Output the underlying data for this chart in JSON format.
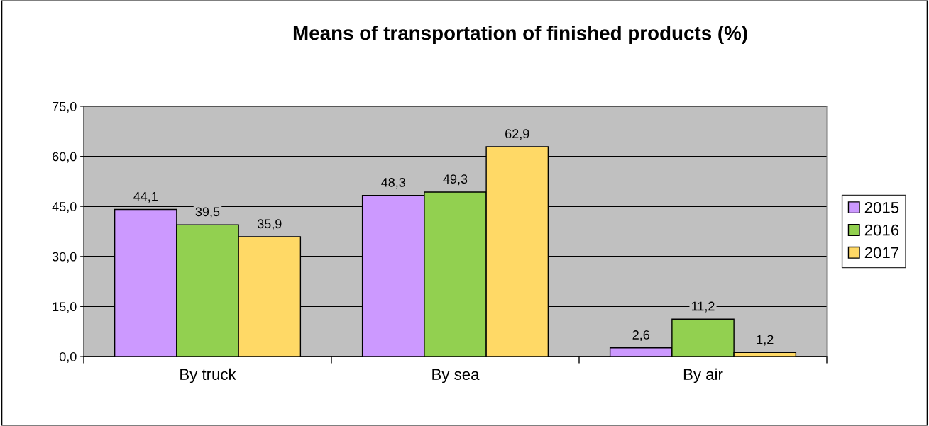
{
  "chart_data": {
    "type": "bar",
    "title": "Means of transportation of finished products (%)",
    "categories": [
      "By truck",
      "By sea",
      "By air"
    ],
    "series": [
      {
        "name": "2015",
        "color": "#cc99ff",
        "values": [
          44.1,
          48.3,
          2.6
        ],
        "value_labels": [
          "44,1",
          "48,3",
          "2,6"
        ]
      },
      {
        "name": "2016",
        "color": "#92d050",
        "values": [
          39.5,
          49.3,
          11.2
        ],
        "value_labels": [
          "39,5",
          "49,3",
          "11,2"
        ]
      },
      {
        "name": "2017",
        "color": "#ffd966",
        "values": [
          35.9,
          62.9,
          1.2
        ],
        "value_labels": [
          "35,9",
          "62,9",
          "1,2"
        ]
      }
    ],
    "ylim": [
      0,
      75
    ],
    "yticks": [
      {
        "value": 0,
        "label": "0,0"
      },
      {
        "value": 15,
        "label": "15,0"
      },
      {
        "value": 30,
        "label": "30,0"
      },
      {
        "value": 45,
        "label": "45,0"
      },
      {
        "value": 60,
        "label": "60,0"
      },
      {
        "value": 75,
        "label": "75,0"
      }
    ],
    "grid": "y",
    "legend": "right"
  }
}
